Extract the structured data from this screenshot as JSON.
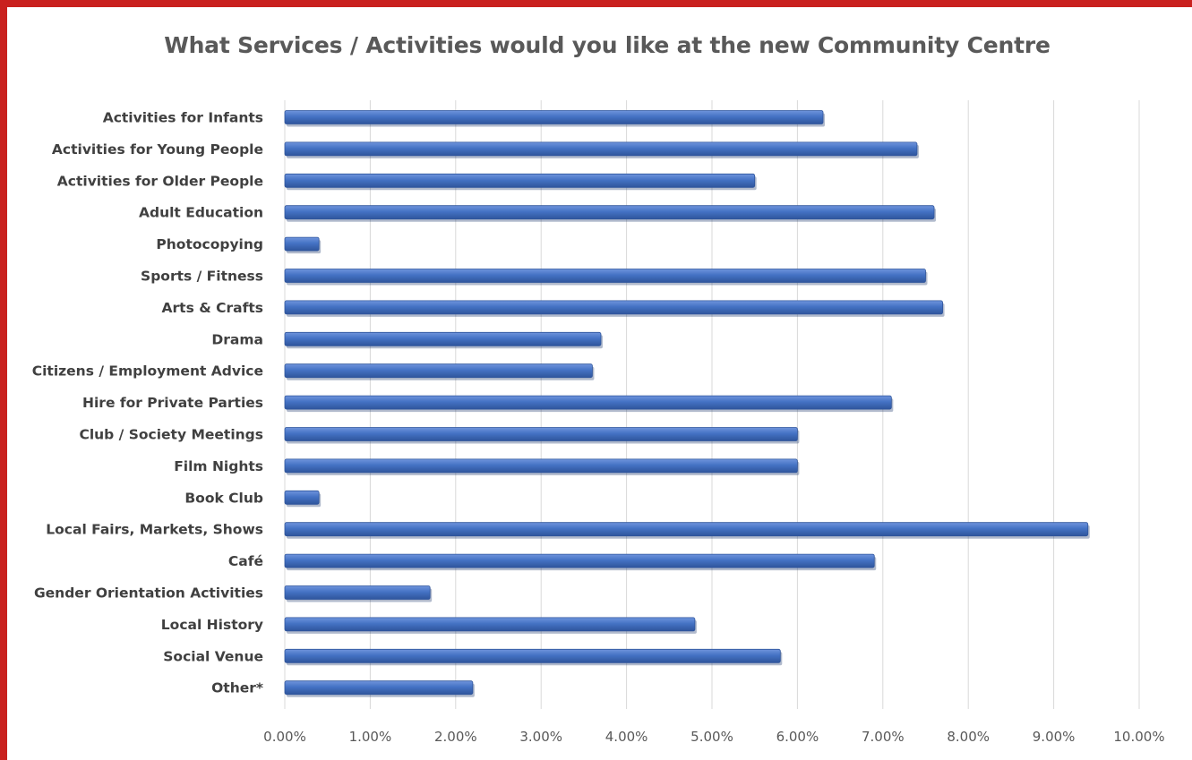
{
  "chart_data": {
    "type": "bar",
    "orientation": "horizontal",
    "title": "What Services / Activities would you like at the new Community Centre",
    "xlabel": "",
    "ylabel": "",
    "categories": [
      "Activities for Infants",
      "Activities for Young People",
      "Activities for Older People",
      "Adult Education",
      "Photocopying",
      "Sports / Fitness",
      "Arts & Crafts",
      "Drama",
      "Citizens / Employment Advice",
      "Hire for Private Parties",
      "Club / Society Meetings",
      "Film Nights",
      "Book Club",
      "Local Fairs, Markets, Shows",
      "Café",
      "Gender Orientation Activities",
      "Local History",
      "Social Venue",
      "Other*"
    ],
    "values": [
      6.3,
      7.4,
      5.5,
      7.6,
      0.4,
      7.5,
      7.7,
      3.7,
      3.6,
      7.1,
      6.0,
      6.0,
      0.4,
      9.4,
      6.9,
      1.7,
      4.8,
      5.8,
      2.2
    ],
    "value_unit": "percent",
    "xlim": [
      0,
      10
    ],
    "xticks": [
      "0.00%",
      "1.00%",
      "2.00%",
      "3.00%",
      "4.00%",
      "5.00%",
      "6.00%",
      "7.00%",
      "8.00%",
      "9.00%",
      "10.00%"
    ],
    "grid": "vertical",
    "legend": "none",
    "bar_color": "#4472c4",
    "frame_color": "#c9211e"
  }
}
